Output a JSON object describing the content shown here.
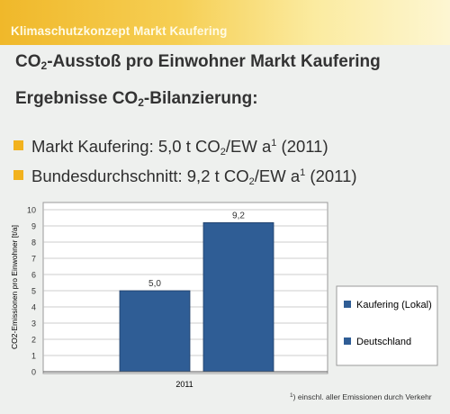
{
  "banner": {
    "title": "Klimaschutzkonzept Markt Kaufering"
  },
  "heading": {
    "line1_pre": "CO",
    "line1_sub": "2",
    "line1_post": "-Ausstoß pro Einwohner Markt Kaufering",
    "line2_pre": "Ergebnisse CO",
    "line2_sub": "2",
    "line2_post": "-Bilanzierung:"
  },
  "bullets": [
    {
      "pre": "Markt Kaufering: 5,0 t CO",
      "sub": "2",
      "mid": "/EW a",
      "sup": "1",
      "post": " (2011)"
    },
    {
      "pre": "Bundesdurchschnitt: 9,2 t CO",
      "sub": "2",
      "mid": "/EW a",
      "sup": "1",
      "post": " (2011)"
    }
  ],
  "colors": {
    "bar": "#2f5d95",
    "bullet": "#f2b21e",
    "banner": "#f0b82a"
  },
  "chart_data": {
    "type": "bar",
    "categories": [
      "2011"
    ],
    "series": [
      {
        "name": "Kaufering (Lokal)",
        "values": [
          5.0
        ],
        "label": "5,0"
      },
      {
        "name": "Deutschland",
        "values": [
          9.2
        ],
        "label": "9,2"
      }
    ],
    "ylabel": "CO2-Emissionen pro Einwohner [t/a]",
    "ylim": [
      0,
      10
    ],
    "yticks": [
      0,
      1,
      2,
      3,
      4,
      5,
      6,
      7,
      8,
      9,
      10
    ],
    "grid": true,
    "legend": "right"
  },
  "footnote": {
    "sup": "1",
    "text": ") einschl. aller Emissionen durch Verkehr"
  }
}
